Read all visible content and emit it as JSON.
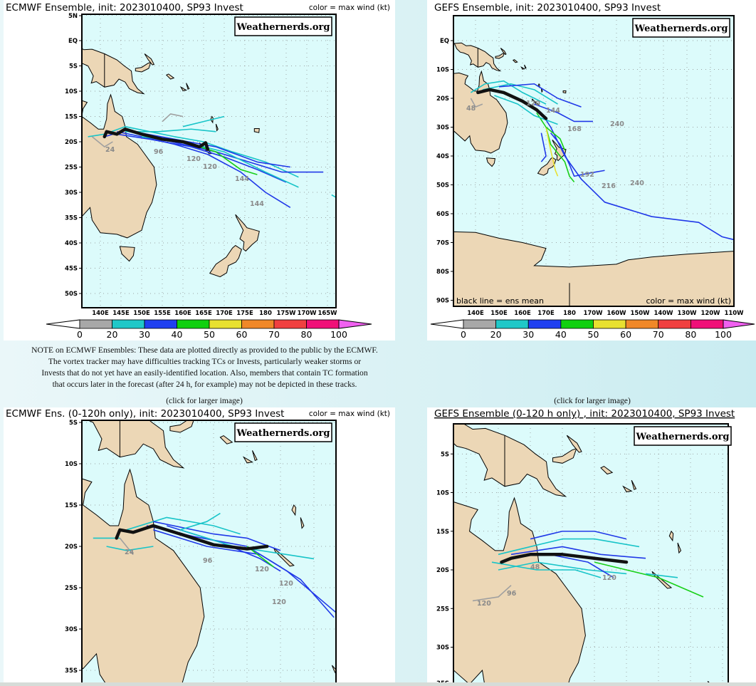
{
  "panels": [
    {
      "title": "ECMWF Ensemble, init: 2023010400, SP93 Invest",
      "legend": "color = max wind (kt)",
      "logo": "Weathernerds.org",
      "lat_ticks": [
        "5N",
        "EQ",
        "5S",
        "10S",
        "15S",
        "20S",
        "25S",
        "30S",
        "35S",
        "40S",
        "45S",
        "50S"
      ],
      "lon_ticks": [
        "140E",
        "145E",
        "150E",
        "155E",
        "160E",
        "165E",
        "170E",
        "175E",
        "180",
        "175W",
        "170W",
        "165W"
      ],
      "track_labels": [
        "24",
        "96",
        "120",
        "120",
        "144",
        "144"
      ]
    },
    {
      "title": "GEFS Ensemble, init: 2023010400, SP93 Invest",
      "legend_left": "black line = ens mean",
      "legend": "color = max wind (kt)",
      "logo": "Weathernerds.org",
      "lat_ticks": [
        "EQ",
        "10S",
        "20S",
        "30S",
        "40S",
        "50S",
        "60S",
        "70S",
        "80S",
        "90S"
      ],
      "lon_ticks": [
        "140E",
        "150E",
        "160E",
        "170E",
        "180",
        "170W",
        "160W",
        "150W",
        "140W",
        "130W",
        "120W",
        "110W"
      ],
      "track_labels": [
        "48",
        "120",
        "144",
        "168",
        "192",
        "216",
        "240",
        "240"
      ]
    },
    {
      "title": "ECMWF Ens. (0-120h only), init: 2023010400, SP93 Invest",
      "legend": "color = max wind (kt)",
      "logo": "Weathernerds.org",
      "lat_ticks": [
        "5S",
        "10S",
        "15S",
        "20S",
        "25S",
        "30S",
        "35S"
      ],
      "track_labels": [
        "24",
        "96",
        "120",
        "120",
        "120"
      ]
    },
    {
      "title": "GEFS Ensemble (0-120 h only) , init: 2023010400, SP93 Invest",
      "logo": "Weathernerds.org",
      "lat_ticks": [
        "5S",
        "10S",
        "15S",
        "20S",
        "25S",
        "30S",
        "35S"
      ],
      "track_labels": [
        "48",
        "96",
        "120",
        "120"
      ]
    }
  ],
  "colorbar": {
    "ticks": [
      "0",
      "20",
      "30",
      "40",
      "50",
      "60",
      "70",
      "80",
      "100"
    ],
    "colors": [
      "#a8a8a8",
      "#20c8c8",
      "#2040f0",
      "#10d010",
      "#e8e030",
      "#f08828",
      "#f04040",
      "#f01078"
    ],
    "under_color": "#ffffff",
    "over_color": "#f060f0"
  },
  "track_colors": {
    "gray": "#a0a0a0",
    "cyan": "#18c4c8",
    "blue": "#2038e8",
    "green": "#18d018",
    "yellow": "#e8e030",
    "mean": "#111111"
  },
  "note": [
    "NOTE on ECMWF Ensembles: These data are plotted directly as provided to the public by the ECMWF.",
    "The vortex tracker may have difficulties tracking TCs or Invests, particularly weaker storms or",
    "Invests that do not yet have an easily-identified location. Also, members that contain TC formation",
    "that occurs later in the forecast (after 24 h, for example) may not be depicted in these tracks."
  ],
  "click_label_left": "(click for larger image)",
  "click_label_right": "(click for larger image)"
}
